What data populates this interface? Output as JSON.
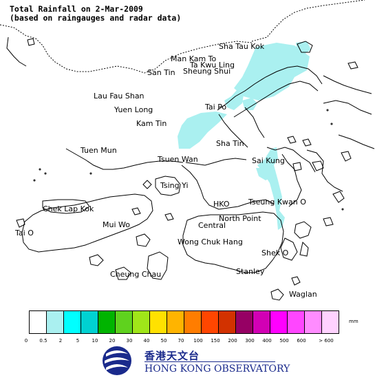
{
  "title": {
    "line1": "Total Rainfall on 2-Mar-2009",
    "line2": "(based on raingauges and radar data)"
  },
  "places": [
    {
      "key": "sha-tau-kok",
      "label": "Sha Tau Kok"
    },
    {
      "key": "man-kam-to",
      "label": "Man Kam To"
    },
    {
      "key": "ta-kwu-ling",
      "label": "Ta Kwu Ling"
    },
    {
      "key": "san-tin",
      "label": "San Tin"
    },
    {
      "key": "sheung-shui",
      "label": "Sheung Shui"
    },
    {
      "key": "lau-fau-shan",
      "label": "Lau Fau Shan"
    },
    {
      "key": "yuen-long",
      "label": "Yuen Long"
    },
    {
      "key": "tai-po",
      "label": "Tai Po"
    },
    {
      "key": "kam-tin",
      "label": "Kam Tin"
    },
    {
      "key": "sha-tin",
      "label": "Sha Tin"
    },
    {
      "key": "tuen-mun",
      "label": "Tuen Mun"
    },
    {
      "key": "tsuen-wan",
      "label": "Tsuen Wan"
    },
    {
      "key": "sai-kung",
      "label": "Sai Kung"
    },
    {
      "key": "tsing-yi",
      "label": "Tsing Yi"
    },
    {
      "key": "hko",
      "label": "HKO"
    },
    {
      "key": "tseung-kwan-o",
      "label": "Tseung Kwan O"
    },
    {
      "key": "chek-lap-kok",
      "label": "Chek Lap Kok"
    },
    {
      "key": "north-point",
      "label": "North Point"
    },
    {
      "key": "mui-wo",
      "label": "Mui Wo"
    },
    {
      "key": "central",
      "label": "Central"
    },
    {
      "key": "tai-o",
      "label": "Tai O"
    },
    {
      "key": "wong-chuk-hang",
      "label": "Wong Chuk Hang"
    },
    {
      "key": "shek-o",
      "label": "Shek O"
    },
    {
      "key": "cheung-chau",
      "label": "Cheung Chau"
    },
    {
      "key": "stanley",
      "label": "Stanley"
    },
    {
      "key": "waglan",
      "label": "Waglan"
    }
  ],
  "legend": {
    "unit": "mm",
    "colors": [
      "#ffffff",
      "#aaf0f0",
      "#00ffff",
      "#00d2d2",
      "#00b400",
      "#5fd21e",
      "#a0e619",
      "#ffe100",
      "#ffb400",
      "#ff7d00",
      "#ff4600",
      "#d23200",
      "#960064",
      "#d200b4",
      "#ff00ff",
      "#ff46ff",
      "#ff8cff",
      "#ffd2ff"
    ],
    "ticks": [
      "0",
      "0.5",
      "2",
      "5",
      "10",
      "20",
      "30",
      "40",
      "50",
      "70",
      "100",
      "150",
      "200",
      "300",
      "400",
      "500",
      "600",
      "> 600"
    ]
  },
  "rain_area_color": "#aaf0f0",
  "rain_area_range": "0.5 - 2 mm",
  "logo": {
    "chinese": "香港天文台",
    "english": "HONG KONG OBSERVATORY",
    "color": "#1a2a8c"
  }
}
